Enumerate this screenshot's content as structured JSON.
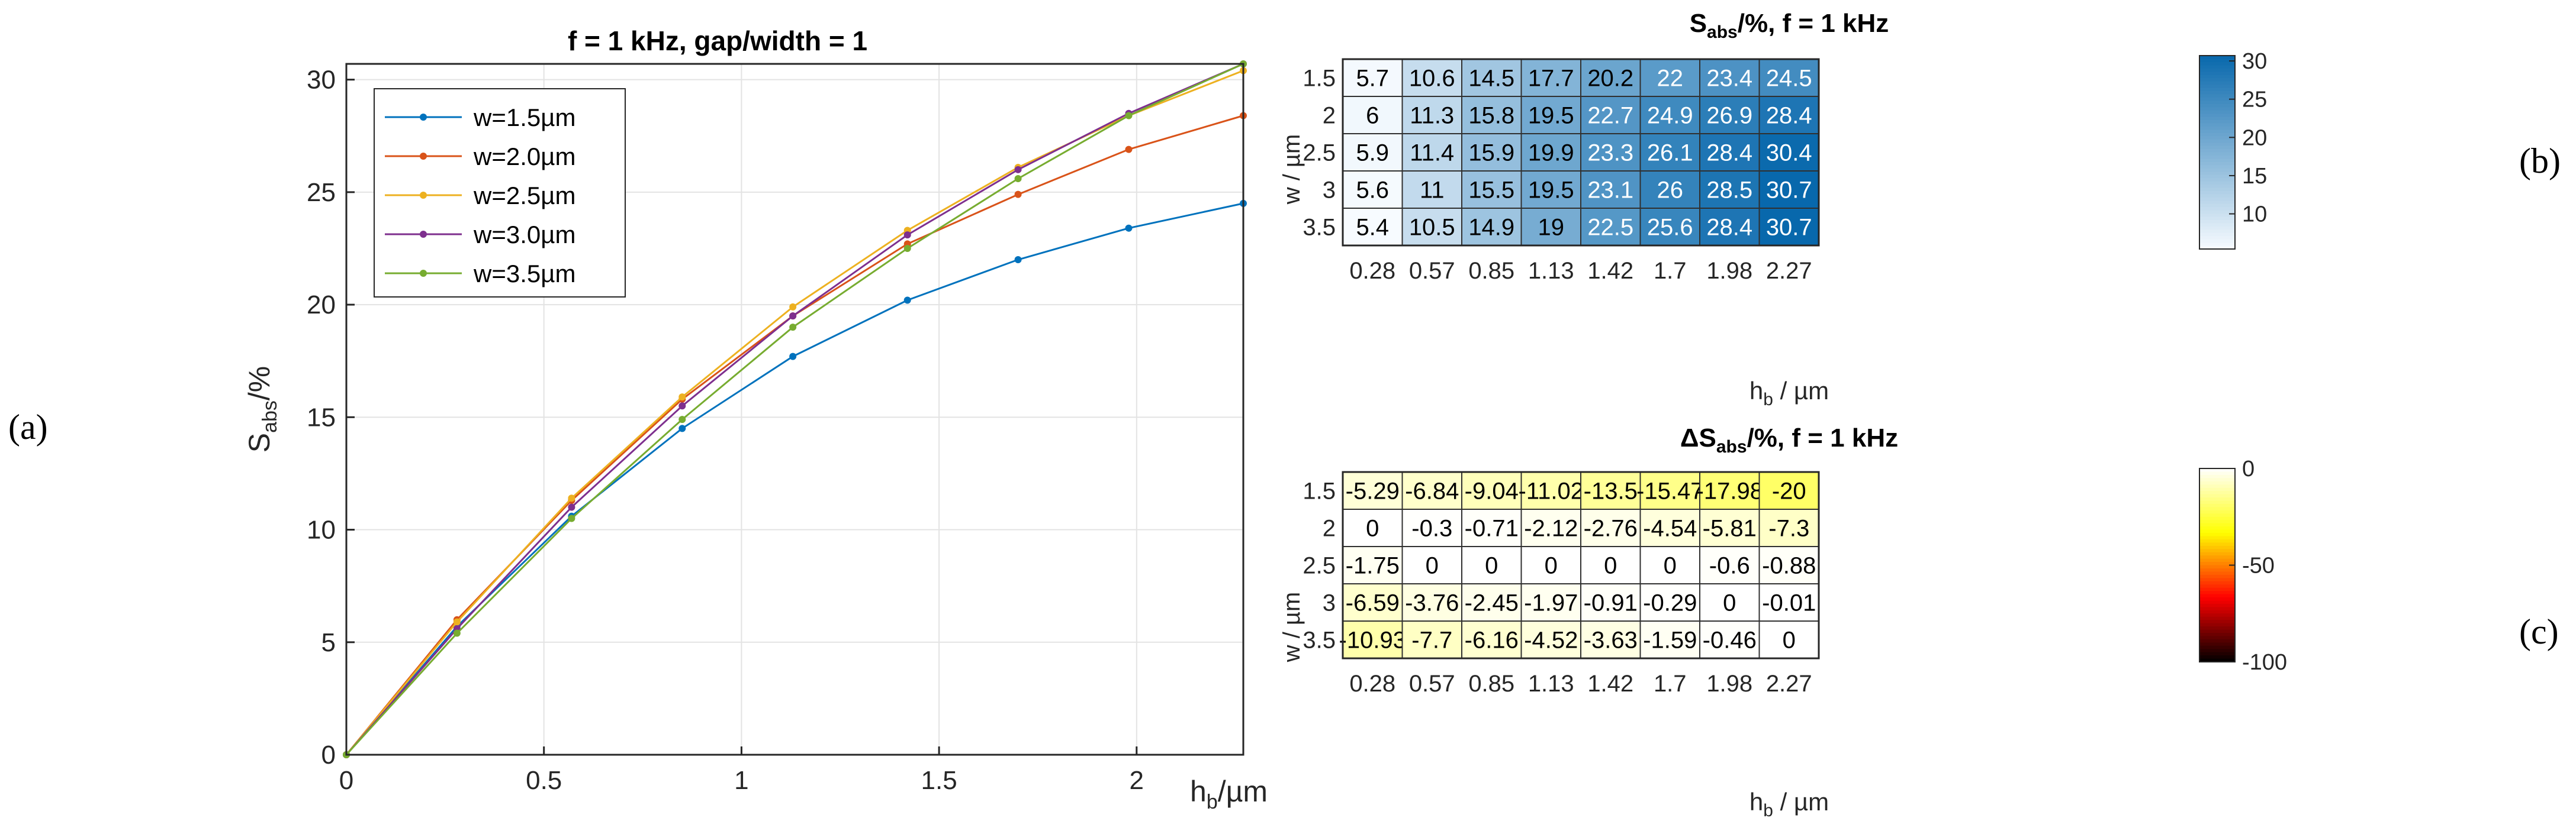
{
  "panel_labels": {
    "a": "(a)",
    "b": "(b)",
    "c": "(c)"
  },
  "chart_data": [
    {
      "id": "a",
      "type": "line",
      "title": "f = 1 kHz, gap/width = 1",
      "xlabel": "h",
      "xlabel_sub": "b",
      "xlabel_unit": "/µm",
      "ylabel": "S",
      "ylabel_sub": "abs",
      "ylabel_unit": "/%",
      "xlim": [
        0,
        2.27
      ],
      "ylim": [
        0,
        30.7
      ],
      "xticks": [
        0,
        0.5,
        1,
        1.5,
        2
      ],
      "xtick_labels": [
        "0",
        "0.5",
        "1",
        "1.5",
        "2"
      ],
      "yticks": [
        0,
        5,
        10,
        15,
        20,
        25,
        30
      ],
      "ytick_labels": [
        "0",
        "5",
        "10",
        "15",
        "20",
        "25",
        "30"
      ],
      "grid": true,
      "legend_position": "top-left",
      "x": [
        0,
        0.28,
        0.57,
        0.85,
        1.13,
        1.42,
        1.7,
        1.98,
        2.27
      ],
      "series": [
        {
          "name": "w=1.5µm",
          "color": "#0072bd",
          "values": [
            0,
            5.7,
            10.6,
            14.5,
            17.7,
            20.2,
            22.0,
            23.4,
            24.5
          ]
        },
        {
          "name": "w=2.0µm",
          "color": "#d95319",
          "values": [
            0,
            6.0,
            11.3,
            15.8,
            19.5,
            22.7,
            24.9,
            26.9,
            28.4
          ]
        },
        {
          "name": "w=2.5µm",
          "color": "#edb120",
          "values": [
            0,
            5.9,
            11.4,
            15.9,
            19.9,
            23.3,
            26.1,
            28.4,
            30.4
          ]
        },
        {
          "name": "w=3.0µm",
          "color": "#7e2f8e",
          "values": [
            0,
            5.6,
            11.0,
            15.5,
            19.5,
            23.1,
            26.0,
            28.5,
            30.7
          ]
        },
        {
          "name": "w=3.5µm",
          "color": "#77ac30",
          "values": [
            0,
            5.4,
            10.5,
            14.9,
            19.0,
            22.5,
            25.6,
            28.4,
            30.7
          ]
        }
      ]
    },
    {
      "id": "b",
      "type": "heatmap",
      "title_main": "S",
      "title_sub": "abs",
      "title_rest": "/%, f = 1 kHz",
      "xlabel": "h",
      "xlabel_sub": "b",
      "xlabel_unit": " / µm",
      "ylabel": "w / µm",
      "x_categories": [
        "0.28",
        "0.57",
        "0.85",
        "1.13",
        "1.42",
        "1.7",
        "1.98",
        "2.27"
      ],
      "y_categories": [
        "1.5",
        "2",
        "2.5",
        "3",
        "3.5"
      ],
      "cells": [
        [
          "5.7",
          "10.6",
          "14.5",
          "17.7",
          "20.2",
          "22",
          "23.4",
          "24.5"
        ],
        [
          "6",
          "11.3",
          "15.8",
          "19.5",
          "22.7",
          "24.9",
          "26.9",
          "28.4"
        ],
        [
          "5.9",
          "11.4",
          "15.9",
          "19.9",
          "23.3",
          "26.1",
          "28.4",
          "30.4"
        ],
        [
          "5.6",
          "11",
          "15.5",
          "19.5",
          "23.1",
          "26",
          "28.5",
          "30.7"
        ],
        [
          "5.4",
          "10.5",
          "14.9",
          "19",
          "22.5",
          "25.6",
          "28.4",
          "30.7"
        ]
      ],
      "color_range": [
        5.4,
        30.7
      ],
      "colormap": [
        "#f7fbff",
        "#0868ac"
      ],
      "colorbar_ticks": [
        10,
        15,
        20,
        25,
        30
      ],
      "colorbar_tick_labels": [
        "10",
        "15",
        "20",
        "25",
        "30"
      ]
    },
    {
      "id": "c",
      "type": "heatmap",
      "title_main": "ΔS",
      "title_sub": "abs",
      "title_rest": "/%, f = 1 kHz",
      "xlabel": "h",
      "xlabel_sub": "b",
      "xlabel_unit": " / µm",
      "ylabel": "w / µm",
      "x_categories": [
        "0.28",
        "0.57",
        "0.85",
        "1.13",
        "1.42",
        "1.7",
        "1.98",
        "2.27"
      ],
      "y_categories": [
        "1.5",
        "2",
        "2.5",
        "3",
        "3.5"
      ],
      "cells": [
        [
          "-5.29",
          "-6.84",
          "-9.04",
          "-11.02",
          "-13.5",
          "-15.47",
          "-17.98",
          "-20"
        ],
        [
          "0",
          "-0.3",
          "-0.71",
          "-2.12",
          "-2.76",
          "-4.54",
          "-5.81",
          "-7.3"
        ],
        [
          "-1.75",
          "0",
          "0",
          "0",
          "0",
          "0",
          "-0.6",
          "-0.88"
        ],
        [
          "-6.59",
          "-3.76",
          "-2.45",
          "-1.97",
          "-0.91",
          "-0.29",
          "0",
          "-0.01"
        ],
        [
          "-10.93",
          "-7.7",
          "-6.16",
          "-4.52",
          "-3.63",
          "-1.59",
          "-0.46",
          "0"
        ]
      ],
      "color_range": [
        -100,
        0
      ],
      "colormap": [
        "#000000",
        "#ff0000",
        "#ffff00",
        "#ffffff"
      ],
      "colorbar_ticks": [
        0,
        -50,
        -100
      ],
      "colorbar_tick_labels": [
        "0",
        "-50",
        "-100"
      ]
    }
  ]
}
